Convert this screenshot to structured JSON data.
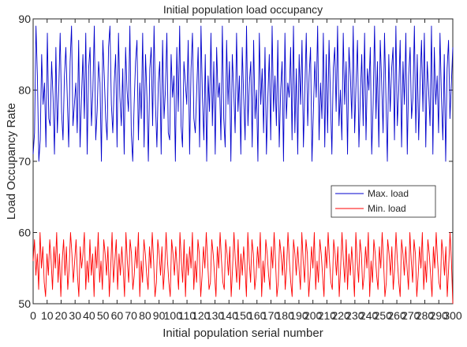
{
  "chart_data": {
    "type": "line",
    "title": "Initial population load occupancy",
    "xlabel": "Initial population serial number",
    "ylabel": "Load Occupancy Rate",
    "xlim": [
      0,
      300
    ],
    "ylim": [
      50,
      90
    ],
    "x_ticks": [
      0,
      10,
      20,
      30,
      40,
      50,
      60,
      70,
      80,
      90,
      100,
      110,
      120,
      130,
      140,
      150,
      160,
      170,
      180,
      190,
      200,
      210,
      220,
      230,
      240,
      250,
      260,
      270,
      280,
      290,
      300
    ],
    "y_ticks": [
      50,
      60,
      70,
      80,
      90
    ],
    "grid": false,
    "legend_position": "right",
    "series": [
      {
        "name": "Max. load",
        "color": "#0000cc",
        "values": [
          71,
          74,
          89,
          82,
          70,
          73,
          85,
          78,
          81,
          72,
          88,
          76,
          75,
          84,
          79,
          71,
          86,
          74,
          80,
          88,
          77,
          73,
          82,
          86,
          79,
          72,
          84,
          89,
          75,
          78,
          81,
          74,
          87,
          72,
          79,
          85,
          76,
          88,
          71,
          83,
          86,
          75,
          80,
          89,
          73,
          77,
          84,
          81,
          70,
          87,
          82,
          76,
          73,
          86,
          89,
          78,
          74,
          81,
          85,
          72,
          88,
          79,
          75,
          83,
          71,
          86,
          80,
          77,
          89,
          74,
          70,
          78,
          84,
          87,
          73,
          81,
          76,
          88,
          72,
          85,
          79,
          70,
          83,
          86,
          75,
          89,
          78,
          72,
          81,
          84,
          71,
          87,
          76,
          80,
          88,
          74,
          73,
          85,
          79,
          82,
          70,
          86,
          77,
          89,
          75,
          72,
          84,
          81,
          78,
          87,
          71,
          83,
          88,
          76,
          74,
          80,
          86,
          72,
          89,
          79,
          73,
          85,
          70,
          82,
          77,
          88,
          75,
          84,
          71,
          86,
          79,
          81,
          73,
          89,
          76,
          72,
          87,
          78,
          84,
          70,
          85,
          80,
          74,
          88,
          77,
          82,
          71,
          86,
          79,
          73,
          89,
          75,
          81,
          84,
          72,
          87,
          76,
          80,
          70,
          88,
          78,
          83,
          74,
          86,
          71,
          79,
          85,
          73,
          89,
          77,
          82,
          75,
          87,
          72,
          80,
          84,
          70,
          88,
          76,
          81,
          79,
          86,
          73,
          89,
          74,
          83,
          71,
          85,
          78,
          87,
          72,
          80,
          88,
          75,
          82,
          86,
          70,
          77,
          84,
          79,
          89,
          73,
          81,
          76,
          88,
          72,
          85,
          74,
          87,
          79,
          71,
          83,
          86,
          77,
          89,
          75,
          80,
          73,
          88,
          78,
          84,
          71,
          86,
          82,
          76,
          89,
          74,
          81,
          87,
          72,
          79,
          85,
          75,
          88,
          73,
          83,
          80,
          86,
          71,
          78,
          89,
          76,
          84,
          72,
          87,
          81,
          74,
          88,
          79,
          70,
          85,
          77,
          83,
          86,
          73,
          89,
          75,
          80,
          87,
          72,
          84,
          78,
          88,
          71,
          82,
          86,
          76,
          79,
          89,
          74,
          85,
          73,
          81,
          87,
          77,
          88,
          72,
          84,
          80,
          75,
          89,
          71,
          86,
          78,
          82,
          74,
          88,
          79,
          73,
          85,
          70,
          83,
          87,
          76,
          81,
          86
        ]
      },
      {
        "name": "Min. load",
        "color": "#ff0000",
        "values": [
          56,
          59,
          54,
          57,
          52,
          60,
          55,
          58,
          53,
          51,
          57,
          54,
          59,
          56,
          52,
          58,
          55,
          60,
          53,
          57,
          51,
          56,
          59,
          54,
          58,
          52,
          55,
          60,
          57,
          53,
          56,
          59,
          54,
          51,
          58,
          55,
          57,
          60,
          52,
          56,
          53,
          59,
          54,
          57,
          51,
          58,
          55,
          60,
          53,
          56,
          52,
          59,
          57,
          54,
          58,
          51,
          55,
          60,
          53,
          56,
          59,
          52,
          57,
          54,
          58,
          55,
          51,
          60,
          56,
          53,
          59,
          57,
          52,
          54,
          58,
          55,
          60,
          51,
          56,
          53,
          59,
          57,
          54,
          52,
          58,
          55,
          60,
          56,
          51,
          53,
          59,
          57,
          54,
          58,
          52,
          55,
          60,
          56,
          53,
          51,
          59,
          57,
          54,
          58,
          55,
          52,
          60,
          56,
          53,
          59,
          51,
          57,
          54,
          58,
          55,
          60,
          52,
          56,
          53,
          59,
          57,
          51,
          54,
          58,
          55,
          60,
          56,
          52,
          53,
          59,
          57,
          54,
          51,
          58,
          55,
          60,
          56,
          53,
          52,
          59,
          57,
          54,
          58,
          51,
          55,
          60,
          56,
          53,
          59,
          52,
          57,
          54,
          58,
          55,
          51,
          60,
          56,
          53,
          59,
          57,
          52,
          54,
          58,
          55,
          60,
          51,
          56,
          53,
          59,
          57,
          54,
          52,
          58,
          55,
          60,
          56,
          51,
          53,
          59,
          57,
          54,
          58,
          52,
          55,
          60,
          56,
          53,
          51,
          59,
          57,
          54,
          58,
          55,
          52,
          60,
          56,
          53,
          59,
          57,
          51,
          54,
          58,
          55,
          60,
          52,
          56,
          53,
          59,
          57,
          54,
          51,
          58,
          55,
          60,
          56,
          53,
          52,
          59,
          57,
          54,
          58,
          51,
          55,
          60,
          56,
          53,
          59,
          52,
          57,
          54,
          58,
          55,
          51,
          60,
          56,
          53,
          59,
          57,
          52,
          54,
          58,
          55,
          60,
          51,
          56,
          53,
          59,
          57,
          54,
          52,
          58,
          55,
          60,
          56,
          51,
          53,
          59,
          57,
          54,
          58,
          52,
          55,
          60,
          56,
          53,
          51,
          59,
          57,
          54,
          58,
          55,
          52,
          60,
          56,
          53,
          59,
          57,
          51,
          54,
          58,
          55,
          60,
          52,
          56,
          53,
          59,
          57,
          54,
          51,
          58,
          55,
          60,
          56,
          53,
          52,
          59,
          57,
          54,
          58,
          51,
          55,
          60,
          56,
          50
        ]
      }
    ]
  }
}
